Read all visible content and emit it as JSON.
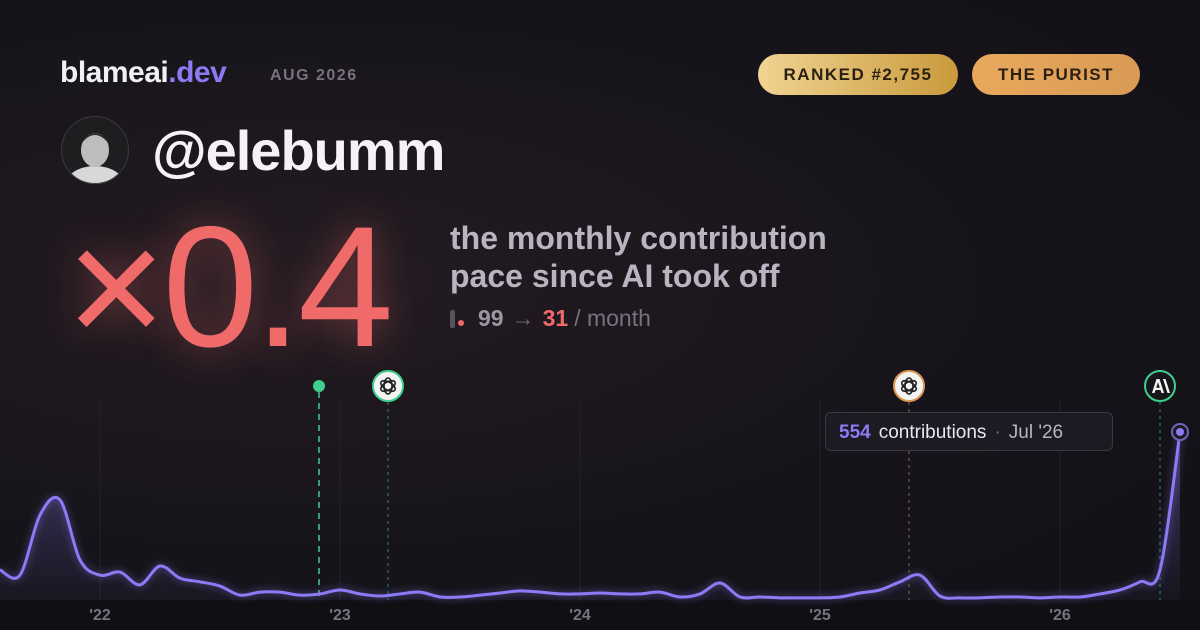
{
  "header": {
    "brand": "blameai",
    "brand_tld": ".dev",
    "period": "AUG 2026"
  },
  "badges": [
    "RANKED #2,755",
    "THE PURIST"
  ],
  "profile": {
    "handle": "@elebumm"
  },
  "headline": {
    "multiplier": "×0.4",
    "line1": "the monthly contribution",
    "line2": "pace since AI took off"
  },
  "stats": {
    "before": "99",
    "arrow": "→",
    "after": "31",
    "unit": "/ month"
  },
  "tooltip": {
    "label": "contributions",
    "separator": "·",
    "date": "Jul '26"
  },
  "chart_data": {
    "type": "line",
    "categories": [
      null,
      null,
      null,
      null,
      null,
      "'22",
      null,
      null,
      null,
      null,
      null,
      null,
      null,
      null,
      null,
      null,
      null,
      "'23",
      null,
      null,
      null,
      null,
      null,
      null,
      null,
      null,
      null,
      null,
      null,
      "'24",
      null,
      null,
      null,
      null,
      null,
      null,
      null,
      null,
      null,
      null,
      null,
      "'25",
      null,
      null,
      null,
      null,
      null,
      null,
      null,
      null,
      null,
      null,
      null,
      "'26",
      null,
      null,
      null,
      null,
      null,
      null
    ],
    "values": [
      99,
      82,
      280,
      330,
      132,
      82,
      92,
      50,
      112,
      72,
      60,
      46,
      16,
      26,
      26,
      16,
      20,
      33,
      20,
      13,
      20,
      26,
      10,
      10,
      16,
      23,
      30,
      26,
      20,
      20,
      23,
      20,
      20,
      26,
      10,
      20,
      56,
      10,
      10,
      7,
      7,
      7,
      10,
      23,
      33,
      60,
      82,
      13,
      7,
      7,
      10,
      10,
      7,
      10,
      10,
      20,
      33,
      60,
      99,
      554
    ],
    "color": "#8b7cf6",
    "ylim": [
      0,
      600
    ]
  }
}
